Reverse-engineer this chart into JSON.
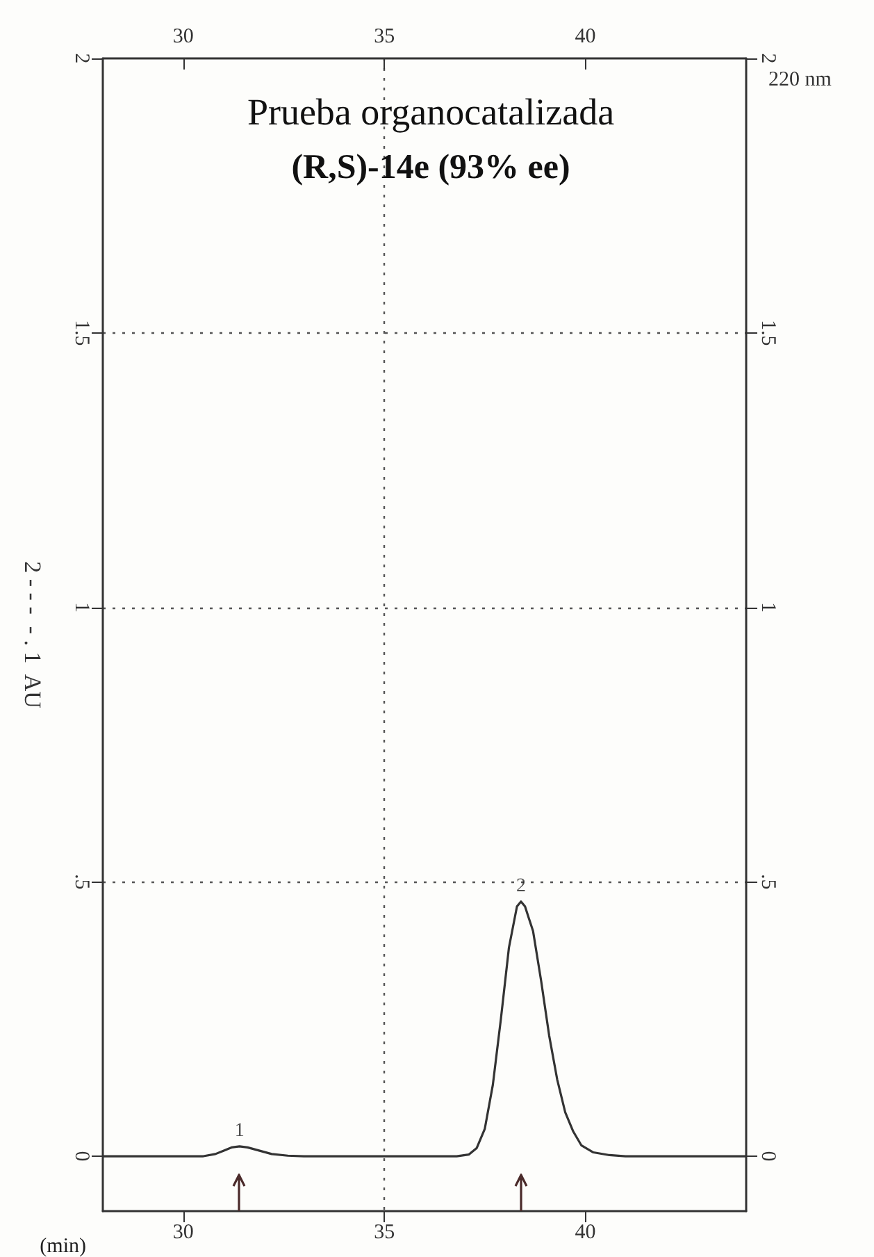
{
  "chart_data": {
    "type": "line",
    "title": "Prueba organocatalizada",
    "subtitle": "(R,S)-14e (93% ee)",
    "xlabel": "(min)",
    "ylabel": "2 - - -  - . 1  AU",
    "annotations": [
      "220 nm",
      {
        "text": "1",
        "x": 31.4,
        "y": 0.018
      },
      {
        "text": "2",
        "x": 38.4,
        "y": 0.464
      }
    ],
    "series": [
      {
        "color": "#333333",
        "x": [
          28,
          30.5,
          30.8,
          31.0,
          31.2,
          31.4,
          31.6,
          31.9,
          32.2,
          32.6,
          33,
          36.8,
          37.1,
          37.3,
          37.5,
          37.7,
          37.9,
          38.1,
          38.3,
          38.4,
          38.5,
          38.7,
          38.9,
          39.1,
          39.3,
          39.5,
          39.7,
          39.9,
          40.2,
          40.6,
          41,
          44
        ],
        "values": [
          0,
          0,
          0.004,
          0.01,
          0.016,
          0.018,
          0.016,
          0.01,
          0.004,
          0.001,
          0,
          0,
          0.003,
          0.015,
          0.05,
          0.13,
          0.25,
          0.38,
          0.455,
          0.464,
          0.455,
          0.41,
          0.32,
          0.22,
          0.14,
          0.08,
          0.045,
          0.02,
          0.007,
          0.002,
          0,
          0
        ]
      }
    ],
    "xlim": [
      28,
      44
    ],
    "xticks": [
      30,
      35,
      40
    ],
    "x2lim": [
      28,
      44
    ],
    "x2ticks": [
      30,
      35,
      40
    ],
    "ylim": [
      -0.1,
      2
    ],
    "yticks": [
      0,
      {
        "value": 0.5,
        "label": ".5"
      },
      1,
      1.5,
      2
    ],
    "y2lim": [
      -0.1,
      2
    ],
    "y2ticks": [
      0,
      {
        "value": 0.5,
        "label": ".5"
      },
      1,
      1.5,
      2
    ],
    "grid": true,
    "marker": "none",
    "line_style": "solid"
  }
}
